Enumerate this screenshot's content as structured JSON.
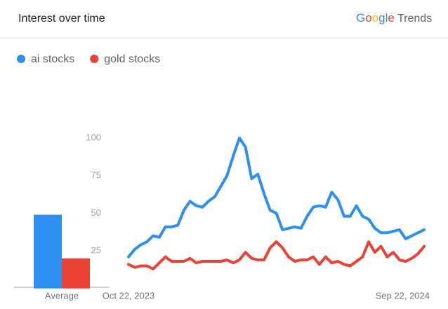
{
  "chart_data": {
    "type": "line",
    "title": "Interest over time",
    "brand": "Google",
    "product": "Trends",
    "average_label": "Average",
    "categories": [
      "Oct 22, 2023",
      null,
      null,
      null,
      null,
      null,
      null,
      null,
      null,
      null,
      null,
      null,
      null,
      null,
      null,
      null,
      null,
      null,
      null,
      null,
      null,
      null,
      null,
      null,
      null,
      null,
      null,
      null,
      null,
      null,
      null,
      null,
      null,
      null,
      null,
      null,
      null,
      null,
      null,
      null,
      null,
      null,
      null,
      null,
      null,
      null,
      null,
      null,
      "Sep 22, 2024"
    ],
    "series": [
      {
        "name": "ai stocks",
        "color": "#2d8ff0",
        "average": 49,
        "values": [
          21,
          26,
          29,
          31,
          35,
          34,
          41,
          41,
          42,
          52,
          58,
          55,
          54,
          58,
          61,
          68,
          75,
          88,
          100,
          94,
          73,
          76,
          63,
          52,
          50,
          39,
          40,
          41,
          40,
          48,
          54,
          55,
          54,
          64,
          59,
          48,
          48,
          55,
          48,
          46,
          40,
          37,
          37,
          38,
          39,
          33,
          35,
          37,
          39
        ]
      },
      {
        "name": "gold stocks",
        "color": "#ea4335",
        "average": 20,
        "values": [
          16,
          14,
          15,
          15,
          13,
          17,
          21,
          18,
          18,
          18,
          20,
          17,
          18,
          18,
          18,
          18,
          19,
          17,
          19,
          24,
          20,
          19,
          19,
          27,
          31,
          27,
          21,
          18,
          19,
          19,
          21,
          16,
          21,
          17,
          18,
          16,
          15,
          18,
          21,
          31,
          24,
          28,
          21,
          24,
          19,
          18,
          20,
          23,
          28
        ]
      }
    ],
    "ylim": [
      0,
      100
    ],
    "yticks": [
      25,
      50,
      75,
      100
    ],
    "grid": false
  }
}
